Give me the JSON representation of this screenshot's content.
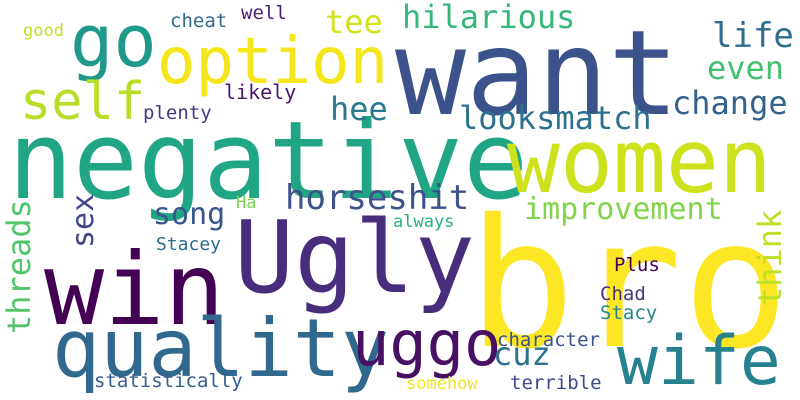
{
  "words": [
    {
      "text": "bro",
      "color": "#fde725",
      "rotated": false
    },
    {
      "text": "want",
      "color": "#3b528b",
      "rotated": false
    },
    {
      "text": "negative",
      "color": "#21a685",
      "rotated": false
    },
    {
      "text": "Ugly",
      "color": "#472d7b",
      "rotated": false
    },
    {
      "text": "women",
      "color": "#cde11d",
      "rotated": false
    },
    {
      "text": "win",
      "color": "#440154",
      "rotated": false
    },
    {
      "text": "quality",
      "color": "#31688e",
      "rotated": false
    },
    {
      "text": "wife",
      "color": "#26828e",
      "rotated": false
    },
    {
      "text": "go",
      "color": "#1f9a8a",
      "rotated": false
    },
    {
      "text": "option",
      "color": "#f5e51b",
      "rotated": false
    },
    {
      "text": "uggo",
      "color": "#471063",
      "rotated": false
    },
    {
      "text": "self",
      "color": "#b8de29",
      "rotated": false
    },
    {
      "text": "horseshit",
      "color": "#3b528b",
      "rotated": false
    },
    {
      "text": "hilarious",
      "color": "#35b779",
      "rotated": false
    },
    {
      "text": "looksmatch",
      "color": "#2c728e",
      "rotated": false
    },
    {
      "text": "change",
      "color": "#33638d",
      "rotated": false
    },
    {
      "text": "improvement",
      "color": "#84d44b",
      "rotated": false
    },
    {
      "text": "life",
      "color": "#2f6c8e",
      "rotated": false
    },
    {
      "text": "even",
      "color": "#44bf70",
      "rotated": false
    },
    {
      "text": "tee",
      "color": "#d2e21b",
      "rotated": false
    },
    {
      "text": "hee",
      "color": "#2a788e",
      "rotated": false
    },
    {
      "text": "song",
      "color": "#39568c",
      "rotated": false
    },
    {
      "text": "cuz",
      "color": "#2c728e",
      "rotated": false
    },
    {
      "text": "think",
      "color": "#bddf26",
      "rotated": true
    },
    {
      "text": "threads",
      "color": "#52c569",
      "rotated": true
    },
    {
      "text": "sex",
      "color": "#414487",
      "rotated": true
    },
    {
      "text": "likely",
      "color": "#48186a",
      "rotated": false
    },
    {
      "text": "plenty",
      "color": "#443a83",
      "rotated": false
    },
    {
      "text": "cheat",
      "color": "#31688e",
      "rotated": false
    },
    {
      "text": "well",
      "color": "#482173",
      "rotated": false
    },
    {
      "text": "good",
      "color": "#c2df23",
      "rotated": false
    },
    {
      "text": "Ha",
      "color": "#7ad151",
      "rotated": false
    },
    {
      "text": "always",
      "color": "#2ab07f",
      "rotated": false
    },
    {
      "text": "Stacey",
      "color": "#2e6e8e",
      "rotated": false
    },
    {
      "text": "statistically",
      "color": "#365c8d",
      "rotated": false
    },
    {
      "text": "somehow",
      "color": "#f1e51d",
      "rotated": false
    },
    {
      "text": "terrible",
      "color": "#3e4989",
      "rotated": false
    },
    {
      "text": "character",
      "color": "#3b528b",
      "rotated": false
    },
    {
      "text": "Plus",
      "color": "#440154",
      "rotated": false
    },
    {
      "text": "Chad",
      "color": "#46337e",
      "rotated": false
    },
    {
      "text": "Stacy",
      "color": "#25858e",
      "rotated": false
    }
  ]
}
